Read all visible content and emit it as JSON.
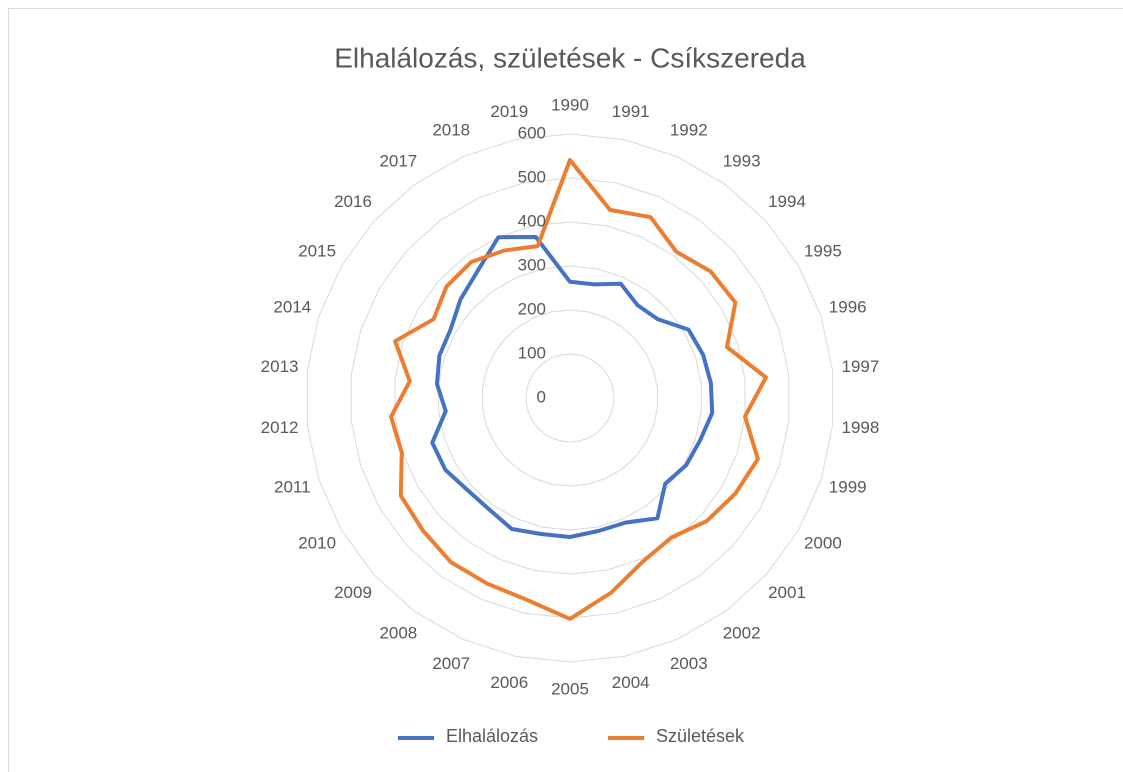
{
  "chart_data": {
    "type": "radar",
    "title": "Elhalálozás, születések - Csíkszereda",
    "categories": [
      "1990",
      "1991",
      "1992",
      "1993",
      "1994",
      "1995",
      "1996",
      "1997",
      "1998",
      "1999",
      "2000",
      "2001",
      "2002",
      "2003",
      "2004",
      "2005",
      "2006",
      "2007",
      "2008",
      "2009",
      "2010",
      "2011",
      "2012",
      "2013",
      "2014",
      "2015",
      "2016",
      "2017",
      "2018",
      "2019"
    ],
    "series": [
      {
        "name": "Elhalálozás",
        "color": "#4472c4",
        "values": [
          264,
          264,
          284,
          261,
          268,
          311,
          318,
          322,
          325,
          311,
          305,
          291,
          338,
          310,
          309,
          316,
          316,
          326,
          313,
          313,
          327,
          329,
          284,
          304,
          312,
          313,
          335,
          357,
          400,
          374
        ]
      },
      {
        "name": "Születések",
        "color": "#ed7d31",
        "values": [
          541,
          437,
          450,
          411,
          430,
          434,
          375,
          448,
          400,
          449,
          434,
          418,
          392,
          407,
          452,
          502,
          469,
          462,
          461,
          450,
          444,
          402,
          409,
          366,
          418,
          358,
          378,
          382,
          367,
          353
        ]
      }
    ],
    "ylim": [
      0,
      600
    ],
    "yticks": [
      0,
      100,
      200,
      300,
      400,
      500,
      600
    ],
    "grid": true,
    "legend": "bottom"
  }
}
